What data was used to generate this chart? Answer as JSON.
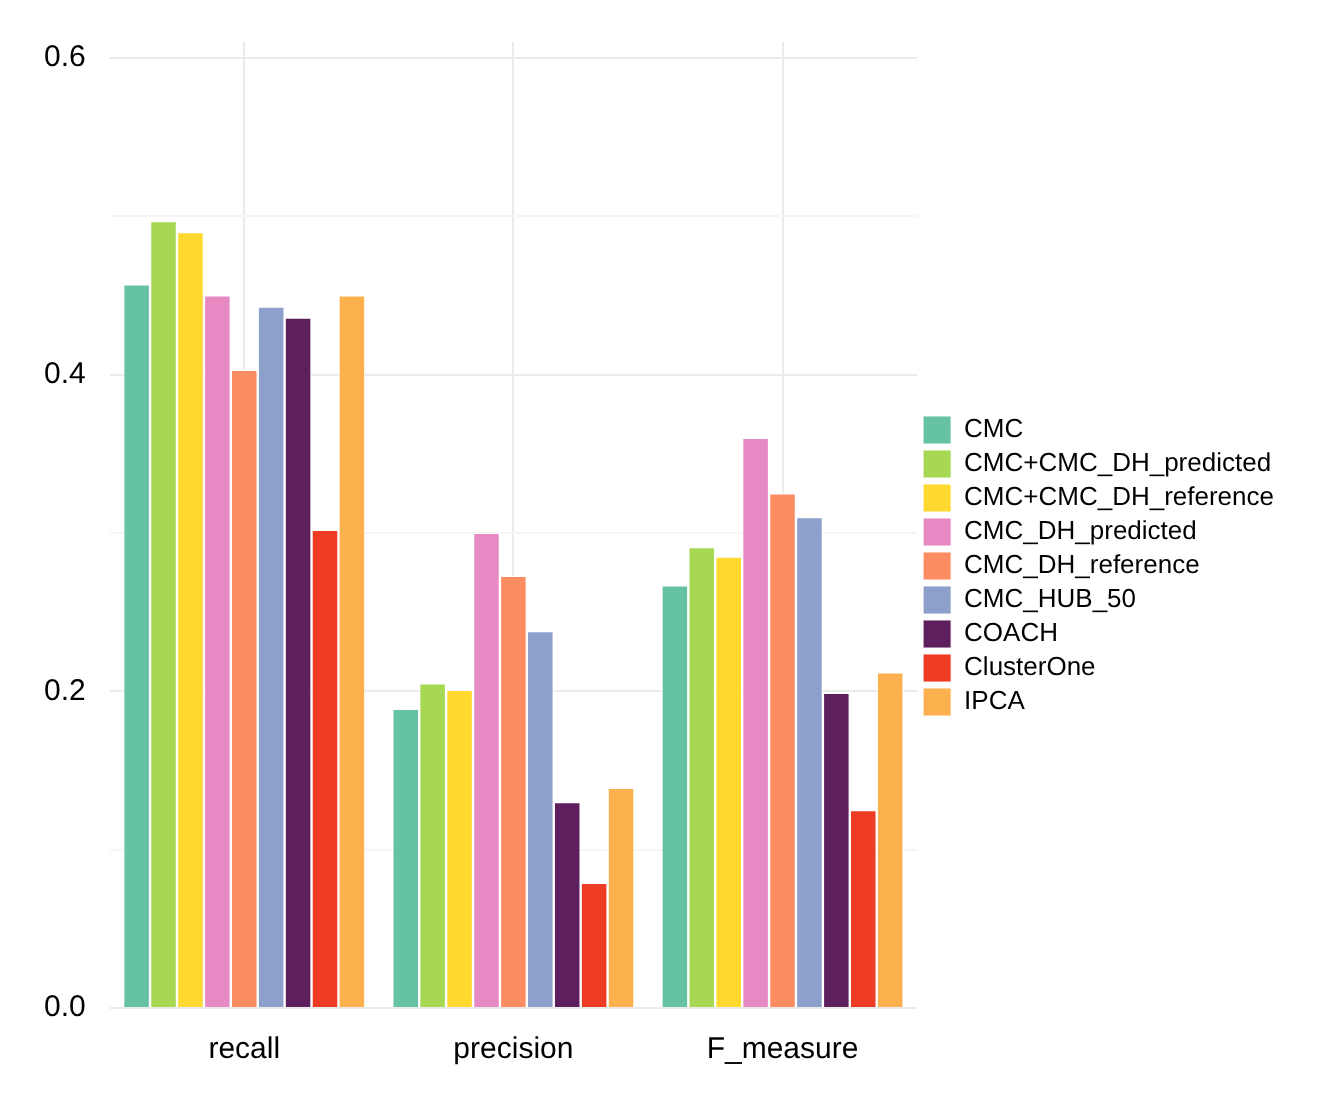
{
  "chart_data": {
    "type": "bar",
    "categories": [
      "recall",
      "precision",
      "F_measure"
    ],
    "series": [
      {
        "name": "CMC",
        "color": "#66c2a5",
        "values": [
          0.457,
          0.189,
          0.267
        ]
      },
      {
        "name": "CMC+CMC_DH_predicted",
        "color": "#a6d854",
        "values": [
          0.497,
          0.205,
          0.291
        ]
      },
      {
        "name": "CMC+CMC_DH_reference",
        "color": "#ffd92f",
        "values": [
          0.49,
          0.201,
          0.285
        ]
      },
      {
        "name": "CMC_DH_predicted",
        "color": "#e78ac3",
        "values": [
          0.45,
          0.3,
          0.36
        ]
      },
      {
        "name": "CMC_DH_reference",
        "color": "#fc8d62",
        "values": [
          0.403,
          0.273,
          0.325
        ]
      },
      {
        "name": "CMC_HUB_50",
        "color": "#8da0cb",
        "values": [
          0.443,
          0.238,
          0.31
        ]
      },
      {
        "name": "COACH",
        "color": "#5e1f5e",
        "values": [
          0.436,
          0.13,
          0.199
        ]
      },
      {
        "name": "ClusterOne",
        "color": "#ee3b24",
        "values": [
          0.302,
          0.079,
          0.125
        ]
      },
      {
        "name": "IPCA",
        "color": "#fdb04e",
        "values": [
          0.45,
          0.139,
          0.212
        ]
      }
    ],
    "ylim": [
      0,
      0.61
    ],
    "yticks": [
      {
        "value": 0,
        "label": "0.0"
      },
      {
        "value": 0.1,
        "label": null
      },
      {
        "value": 0.2,
        "label": "0.2"
      },
      {
        "value": 0.3,
        "label": null
      },
      {
        "value": 0.4,
        "label": "0.4"
      },
      {
        "value": 0.5,
        "label": null
      },
      {
        "value": 0.6,
        "label": "0.6"
      }
    ],
    "grid": true,
    "legend": "right"
  }
}
